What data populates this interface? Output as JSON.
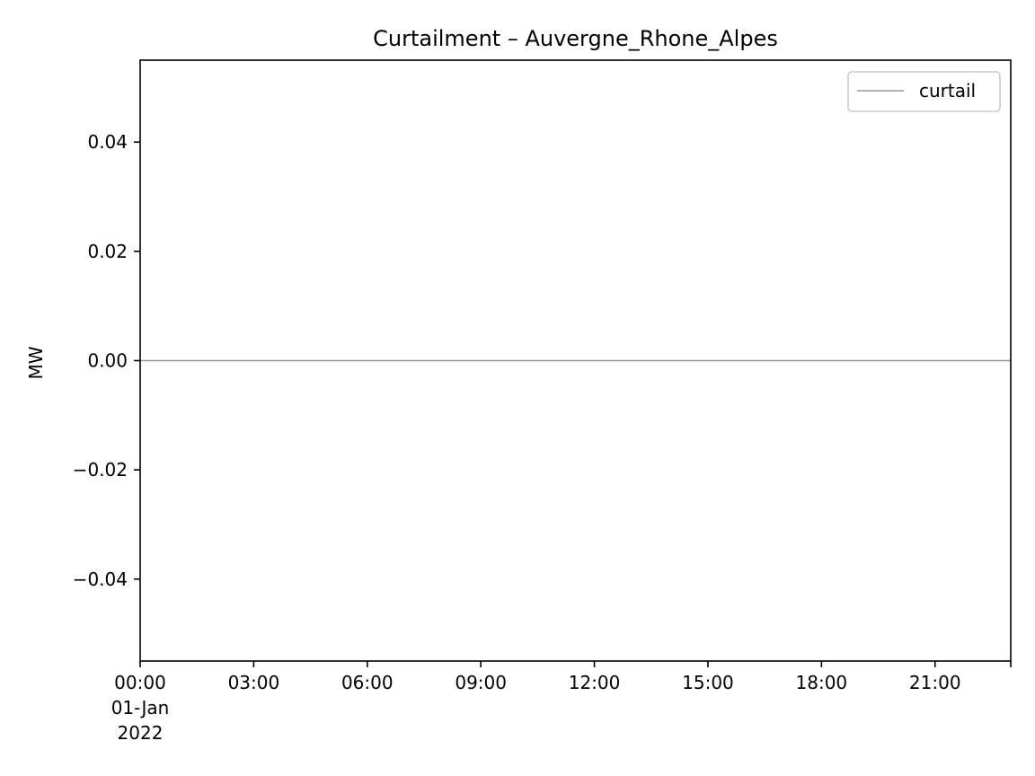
{
  "chart_data": {
    "type": "line",
    "title": "Curtailment – Auvergne_Rhone_Alpes",
    "xlabel": "",
    "ylabel": "MW",
    "xlim": [
      "2022-01-01 00:00",
      "2022-01-01 23:00"
    ],
    "ylim": [
      -0.055,
      0.055
    ],
    "x_ticks": [
      {
        "value": "2022-01-01 00:00",
        "lines": [
          "00:00",
          "01-Jan",
          "2022"
        ]
      },
      {
        "value": "2022-01-01 03:00",
        "lines": [
          "03:00"
        ]
      },
      {
        "value": "2022-01-01 06:00",
        "lines": [
          "06:00"
        ]
      },
      {
        "value": "2022-01-01 09:00",
        "lines": [
          "09:00"
        ]
      },
      {
        "value": "2022-01-01 12:00",
        "lines": [
          "12:00"
        ]
      },
      {
        "value": "2022-01-01 15:00",
        "lines": [
          "15:00"
        ]
      },
      {
        "value": "2022-01-01 18:00",
        "lines": [
          "18:00"
        ]
      },
      {
        "value": "2022-01-01 21:00",
        "lines": [
          "21:00"
        ]
      },
      {
        "value": "2022-01-01 23:00",
        "lines": []
      }
    ],
    "y_ticks": [
      {
        "value": 0.04,
        "label": "0.04"
      },
      {
        "value": 0.02,
        "label": "0.02"
      },
      {
        "value": 0.0,
        "label": "0.00"
      },
      {
        "value": -0.02,
        "label": "−0.02"
      },
      {
        "value": -0.04,
        "label": "−0.04"
      }
    ],
    "series": [
      {
        "name": "curtail",
        "color": "#999999",
        "x": [
          "2022-01-01 00:00",
          "2022-01-01 01:00",
          "2022-01-01 02:00",
          "2022-01-01 03:00",
          "2022-01-01 04:00",
          "2022-01-01 05:00",
          "2022-01-01 06:00",
          "2022-01-01 07:00",
          "2022-01-01 08:00",
          "2022-01-01 09:00",
          "2022-01-01 10:00",
          "2022-01-01 11:00",
          "2022-01-01 12:00",
          "2022-01-01 13:00",
          "2022-01-01 14:00",
          "2022-01-01 15:00",
          "2022-01-01 16:00",
          "2022-01-01 17:00",
          "2022-01-01 18:00",
          "2022-01-01 19:00",
          "2022-01-01 20:00",
          "2022-01-01 21:00",
          "2022-01-01 22:00",
          "2022-01-01 23:00"
        ],
        "values": [
          0,
          0,
          0,
          0,
          0,
          0,
          0,
          0,
          0,
          0,
          0,
          0,
          0,
          0,
          0,
          0,
          0,
          0,
          0,
          0,
          0,
          0,
          0,
          0
        ]
      }
    ],
    "grid": false,
    "legend": {
      "placement": "upper right"
    }
  }
}
